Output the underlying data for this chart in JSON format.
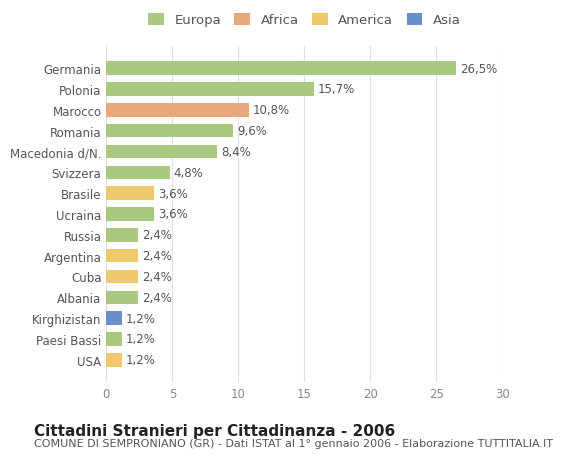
{
  "countries": [
    "Germania",
    "Polonia",
    "Marocco",
    "Romania",
    "Macedonia d/N.",
    "Svizzera",
    "Brasile",
    "Ucraina",
    "Russia",
    "Argentina",
    "Cuba",
    "Albania",
    "Kirghizistan",
    "Paesi Bassi",
    "USA"
  ],
  "values": [
    26.5,
    15.7,
    10.8,
    9.6,
    8.4,
    4.8,
    3.6,
    3.6,
    2.4,
    2.4,
    2.4,
    2.4,
    1.2,
    1.2,
    1.2
  ],
  "labels": [
    "26,5%",
    "15,7%",
    "10,8%",
    "9,6%",
    "8,4%",
    "4,8%",
    "3,6%",
    "3,6%",
    "2,4%",
    "2,4%",
    "2,4%",
    "2,4%",
    "1,2%",
    "1,2%",
    "1,2%"
  ],
  "continents": [
    "Europa",
    "Europa",
    "Africa",
    "Europa",
    "Europa",
    "Europa",
    "America",
    "Europa",
    "Europa",
    "America",
    "America",
    "Europa",
    "Asia",
    "Europa",
    "America"
  ],
  "colors": {
    "Europa": "#a8c97f",
    "Africa": "#e8a87c",
    "America": "#f0c96e",
    "Asia": "#6a8fc8"
  },
  "legend_colors": {
    "Europa": "#a8c97f",
    "Africa": "#e8a87c",
    "America": "#f0c96e",
    "Asia": "#6a8fc8"
  },
  "xlim": [
    0,
    30
  ],
  "xticks": [
    0,
    5,
    10,
    15,
    20,
    25,
    30
  ],
  "title": "Cittadini Stranieri per Cittadinanza - 2006",
  "subtitle": "COMUNE DI SEMPRONIANO (GR) - Dati ISTAT al 1° gennaio 2006 - Elaborazione TUTTITALIA.IT",
  "bg_color": "#ffffff",
  "grid_color": "#e0e0e0",
  "bar_height": 0.65,
  "label_fontsize": 8.5,
  "ytick_fontsize": 8.5,
  "xtick_fontsize": 8.5,
  "title_fontsize": 11,
  "subtitle_fontsize": 8
}
